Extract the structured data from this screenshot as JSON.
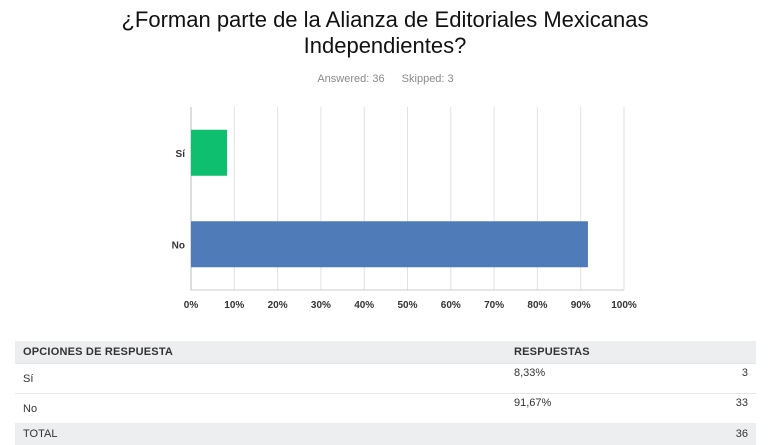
{
  "chart_data": {
    "type": "bar",
    "orientation": "horizontal",
    "title": "¿Forman parte de la Alianza de Editoriales Mexicanas Independientes?",
    "categories": [
      "Sí",
      "No"
    ],
    "values": [
      8.33,
      91.67
    ],
    "colors": [
      "#0dbf6f",
      "#4f7cb9"
    ],
    "xlim": [
      0,
      100
    ],
    "xticks": [
      "0%",
      "10%",
      "20%",
      "30%",
      "40%",
      "50%",
      "60%",
      "70%",
      "80%",
      "90%",
      "100%"
    ],
    "grid": true
  },
  "stats": {
    "answered": "Answered: 36",
    "skipped": "Skipped: 3"
  },
  "table": {
    "headers": {
      "option": "OPCIONES DE RESPUESTA",
      "responses": "RESPUESTAS"
    },
    "rows": [
      {
        "option": "Sí",
        "percent": "8,33%",
        "count": "3"
      },
      {
        "option": "No",
        "percent": "91,67%",
        "count": "33"
      }
    ],
    "total": {
      "label": "TOTAL",
      "count": "36"
    }
  }
}
